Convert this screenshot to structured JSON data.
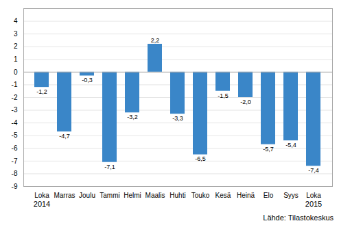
{
  "chart_data": {
    "type": "bar",
    "categories": [
      "Loka",
      "Marras",
      "Joulu",
      "Tammi",
      "Helmi",
      "Maalis",
      "Huhti",
      "Touko",
      "Kesä",
      "Heinä",
      "Elo",
      "Syys",
      "Loka"
    ],
    "values": [
      -1.2,
      -4.7,
      -0.3,
      -7.1,
      -3.2,
      2.2,
      -3.3,
      -6.5,
      -1.5,
      -2.0,
      -5.7,
      -5.4,
      -7.4
    ],
    "value_labels": [
      "-1,2",
      "-4,7",
      "-0,3",
      "-7,1",
      "-3,2",
      "2,2",
      "-3,3",
      "-6,5",
      "-1,5",
      "-2,0",
      "-5,7",
      "-5,4",
      "-7,4"
    ],
    "data_labels": true,
    "color": "#3a86c8",
    "ylim": [
      -9,
      5
    ],
    "yticks": [
      -9,
      -8,
      -7,
      -6,
      -5,
      -4,
      -3,
      -2,
      -1,
      0,
      1,
      2,
      3,
      4
    ],
    "grid": true,
    "annotations": [
      {
        "text": "2014",
        "index": 0
      },
      {
        "text": "2015",
        "index": 12
      }
    ],
    "source": "Lähde: Tilastokeskus"
  }
}
